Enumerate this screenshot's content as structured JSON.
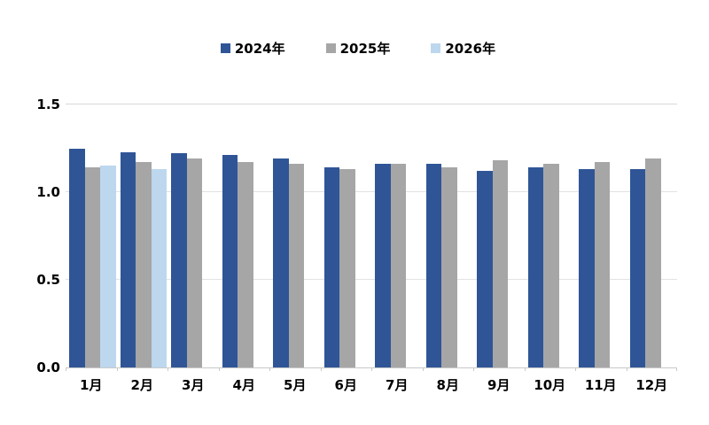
{
  "page": {
    "background": "#FFFFFF"
  },
  "colors": {
    "series_2024": "#2F5597",
    "series_2025": "#A6A6A6",
    "series_2026": "#BDD7EE",
    "axis_line": "#C9C9C9",
    "gridline": "#E2E2E2",
    "text": "#000000"
  },
  "axes": {
    "y_tick_labels": [
      "0.0",
      "0.5",
      "1.0",
      "1.5"
    ],
    "y_tick_values": [
      0,
      0.5,
      1,
      1.5
    ],
    "x_tick_labels": [
      "1月",
      "2月",
      "3月",
      "4月",
      "5月",
      "6月",
      "7月",
      "8月",
      "9月",
      "10月",
      "11月",
      "12月"
    ]
  },
  "chart_data": {
    "type": "bar",
    "title": "",
    "xlabel": "",
    "ylabel": "",
    "categories": [
      "1月",
      "2月",
      "3月",
      "4月",
      "5月",
      "6月",
      "7月",
      "8月",
      "9月",
      "10月",
      "11月",
      "12月"
    ],
    "series": [
      {
        "name": "2024年",
        "color": "#2F5597",
        "values": [
          1.25,
          1.23,
          1.22,
          1.21,
          1.19,
          1.14,
          1.16,
          1.16,
          1.12,
          1.14,
          1.13,
          1.13
        ]
      },
      {
        "name": "2025年",
        "color": "#A6A6A6",
        "values": [
          1.14,
          1.17,
          1.19,
          1.17,
          1.16,
          1.13,
          1.16,
          1.14,
          1.18,
          1.16,
          1.17,
          1.19
        ]
      },
      {
        "name": "2026年",
        "color": "#BDD7EE",
        "values": [
          1.15,
          1.13,
          null,
          null,
          null,
          null,
          null,
          null,
          null,
          null,
          null,
          null
        ]
      }
    ],
    "ylim": [
      0,
      1.5
    ],
    "yticks": [
      0,
      0.5,
      1,
      1.5
    ],
    "grid": true,
    "legend_position": "top"
  }
}
